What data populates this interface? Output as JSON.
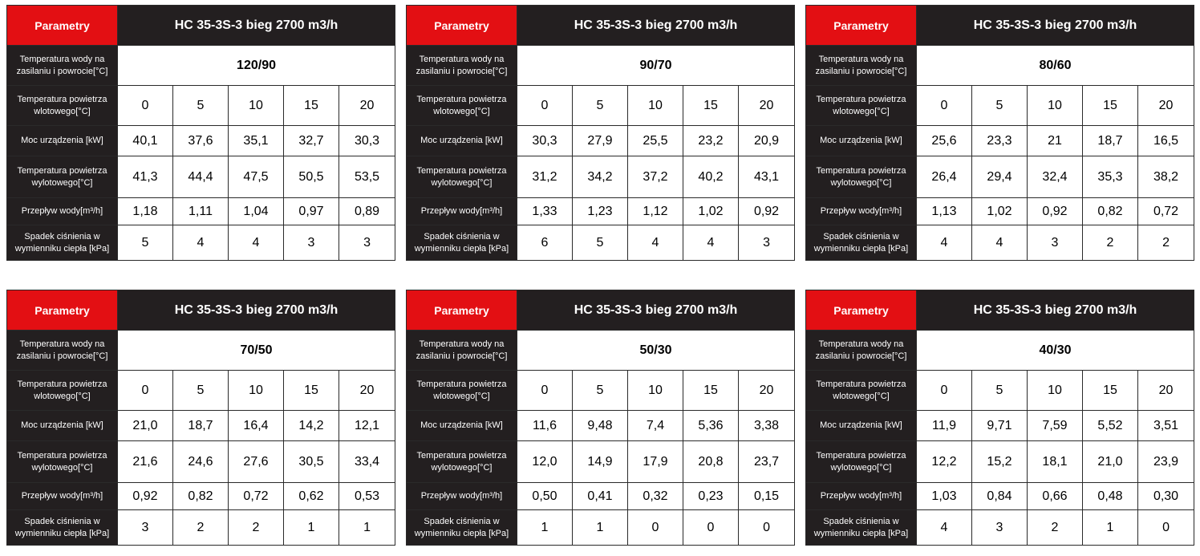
{
  "labels": {
    "parametry": "Parametry",
    "water_temp": "Temperatura wody na zasilaniu i powrocie[°C]",
    "inlet_air_temp": "Temperatura powietrza wlotowego[°C]",
    "power": "Moc urządzenia [kW]",
    "outlet_air_temp": "Temperatura powietrza wylotowego[°C]",
    "water_flow": "Przepływ wody[m³/h]",
    "pressure_drop": "Spadek ciśnienia w wymienniku ciepła [kPa]"
  },
  "colors": {
    "header_red": "#e30f13",
    "dark": "#231f20",
    "cell": "#ffffff"
  },
  "tables": [
    {
      "model": "HC 35-3S-3 bieg 2700 m3/h",
      "water": "120/90",
      "inlet": [
        "0",
        "5",
        "10",
        "15",
        "20"
      ],
      "power": [
        "40,1",
        "37,6",
        "35,1",
        "32,7",
        "30,3"
      ],
      "outlet": [
        "41,3",
        "44,4",
        "47,5",
        "50,5",
        "53,5"
      ],
      "flow": [
        "1,18",
        "1,11",
        "1,04",
        "0,97",
        "0,89"
      ],
      "drop": [
        "5",
        "4",
        "4",
        "3",
        "3"
      ]
    },
    {
      "model": "HC 35-3S-3 bieg 2700 m3/h",
      "water": "90/70",
      "inlet": [
        "0",
        "5",
        "10",
        "15",
        "20"
      ],
      "power": [
        "30,3",
        "27,9",
        "25,5",
        "23,2",
        "20,9"
      ],
      "outlet": [
        "31,2",
        "34,2",
        "37,2",
        "40,2",
        "43,1"
      ],
      "flow": [
        "1,33",
        "1,23",
        "1,12",
        "1,02",
        "0,92"
      ],
      "drop": [
        "6",
        "5",
        "4",
        "4",
        "3"
      ]
    },
    {
      "model": "HC 35-3S-3 bieg 2700 m3/h",
      "water": "80/60",
      "inlet": [
        "0",
        "5",
        "10",
        "15",
        "20"
      ],
      "power": [
        "25,6",
        "23,3",
        "21",
        "18,7",
        "16,5"
      ],
      "outlet": [
        "26,4",
        "29,4",
        "32,4",
        "35,3",
        "38,2"
      ],
      "flow": [
        "1,13",
        "1,02",
        "0,92",
        "0,82",
        "0,72"
      ],
      "drop": [
        "4",
        "4",
        "3",
        "2",
        "2"
      ]
    },
    {
      "model": "HC 35-3S-3 bieg 2700 m3/h",
      "water": "70/50",
      "inlet": [
        "0",
        "5",
        "10",
        "15",
        "20"
      ],
      "power": [
        "21,0",
        "18,7",
        "16,4",
        "14,2",
        "12,1"
      ],
      "outlet": [
        "21,6",
        "24,6",
        "27,6",
        "30,5",
        "33,4"
      ],
      "flow": [
        "0,92",
        "0,82",
        "0,72",
        "0,62",
        "0,53"
      ],
      "drop": [
        "3",
        "2",
        "2",
        "1",
        "1"
      ]
    },
    {
      "model": "HC 35-3S-3 bieg 2700 m3/h",
      "water": "50/30",
      "inlet": [
        "0",
        "5",
        "10",
        "15",
        "20"
      ],
      "power": [
        "11,6",
        "9,48",
        "7,4",
        "5,36",
        "3,38"
      ],
      "outlet": [
        "12,0",
        "14,9",
        "17,9",
        "20,8",
        "23,7"
      ],
      "flow": [
        "0,50",
        "0,41",
        "0,32",
        "0,23",
        "0,15"
      ],
      "drop": [
        "1",
        "1",
        "0",
        "0",
        "0"
      ]
    },
    {
      "model": "HC 35-3S-3 bieg 2700 m3/h",
      "water": "40/30",
      "inlet": [
        "0",
        "5",
        "10",
        "15",
        "20"
      ],
      "power": [
        "11,9",
        "9,71",
        "7,59",
        "5,52",
        "3,51"
      ],
      "outlet": [
        "12,2",
        "15,2",
        "18,1",
        "21,0",
        "23,9"
      ],
      "flow": [
        "1,03",
        "0,84",
        "0,66",
        "0,48",
        "0,30"
      ],
      "drop": [
        "4",
        "3",
        "2",
        "1",
        "0"
      ]
    }
  ]
}
